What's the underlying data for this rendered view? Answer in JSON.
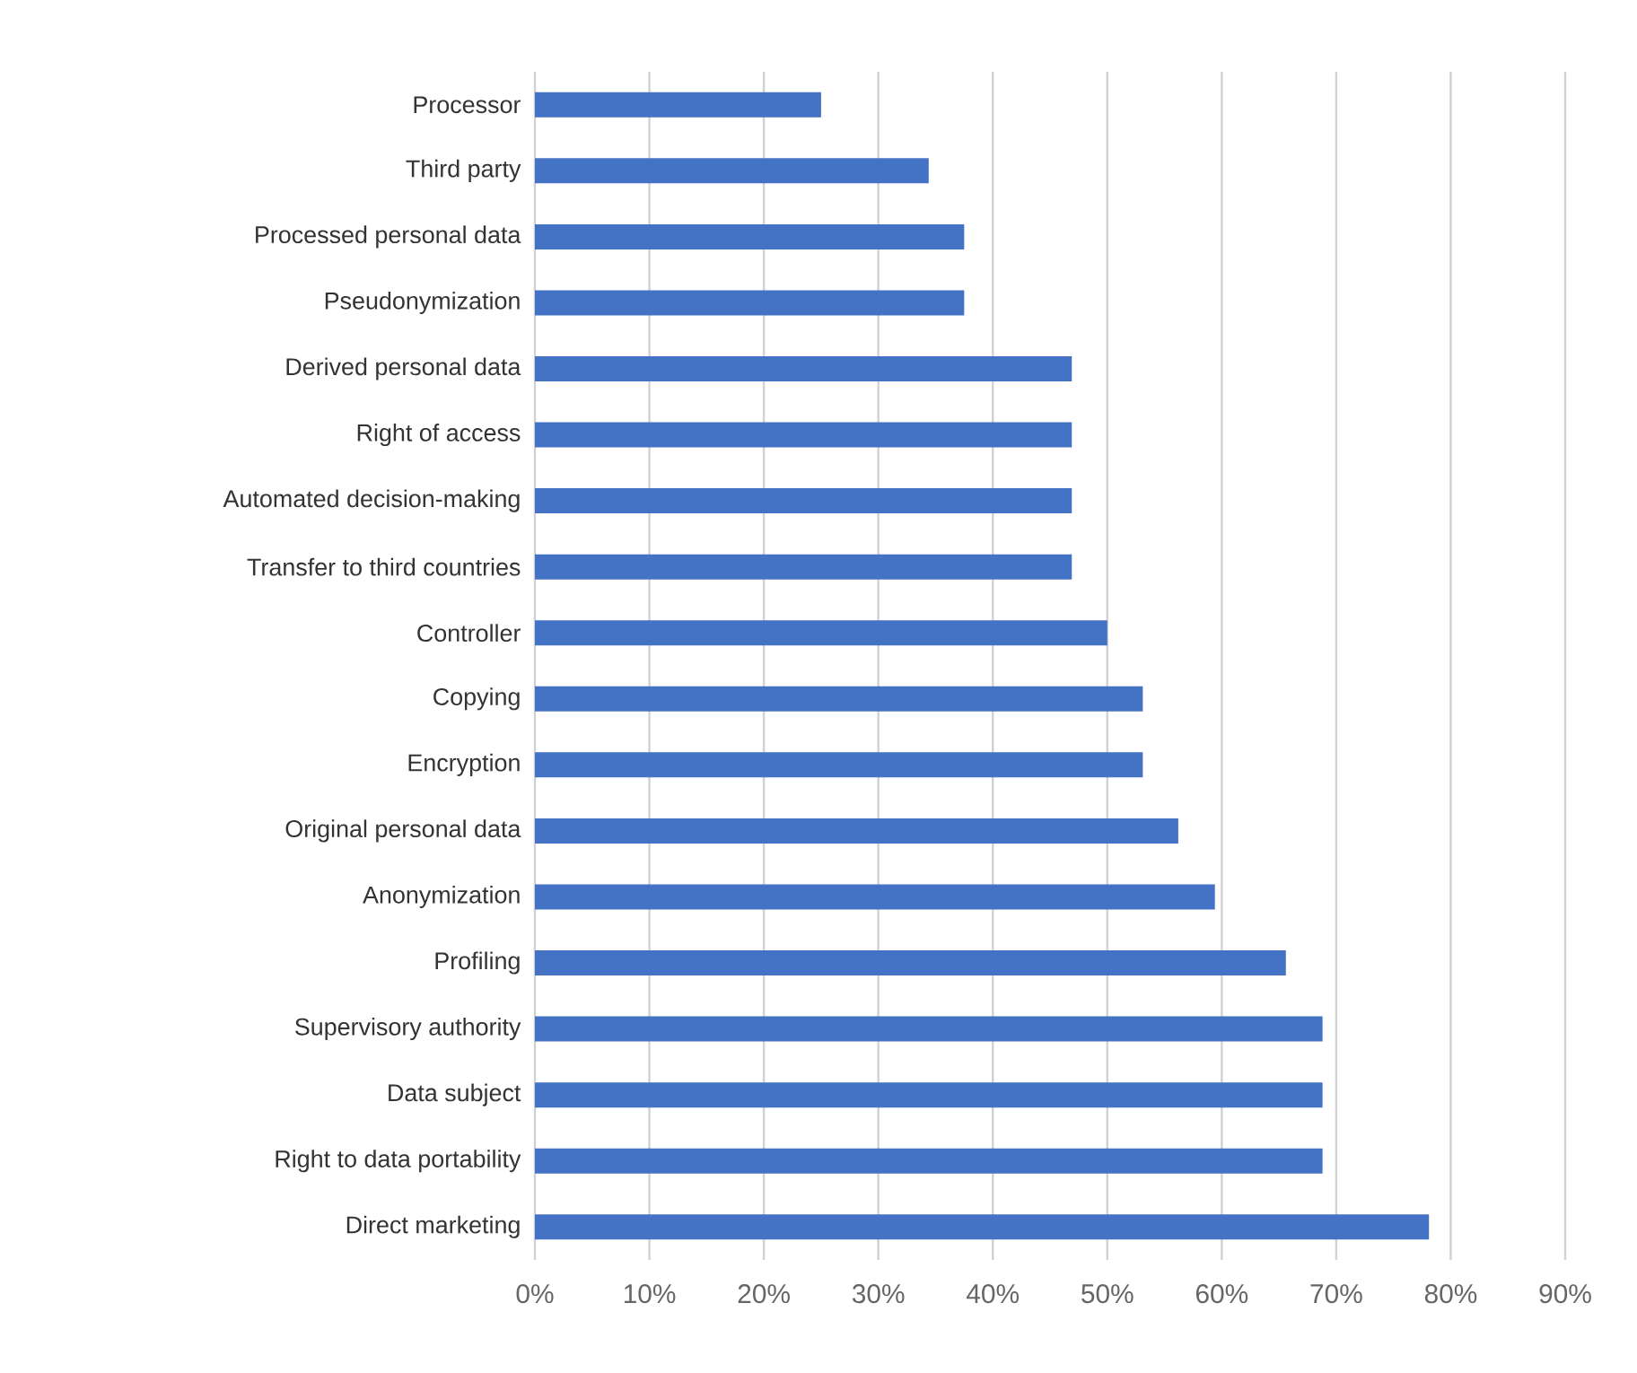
{
  "chart_data": {
    "type": "bar",
    "orientation": "horizontal",
    "categories": [
      "Processor",
      "Third party",
      "Processed personal data",
      "Pseudonymization",
      "Derived personal data",
      "Right of access",
      "Automated decision-making",
      "Transfer to third countries",
      "Controller",
      "Copying",
      "Encryption",
      "Original personal data",
      "Anonymization",
      "Profiling",
      "Supervisory authority",
      "Data subject",
      "Right to data portability",
      "Direct marketing"
    ],
    "values": [
      25,
      34.4,
      37.5,
      37.5,
      46.9,
      46.9,
      46.9,
      46.9,
      50,
      53.1,
      53.1,
      56.2,
      59.4,
      65.6,
      68.8,
      68.8,
      68.8,
      78.1
    ],
    "color": "#4472c4",
    "xlim": [
      0,
      90
    ],
    "xticks": [
      {
        "value": 0,
        "label": "0%"
      },
      {
        "value": 10,
        "label": "10%"
      },
      {
        "value": 20,
        "label": "20%"
      },
      {
        "value": 30,
        "label": "30%"
      },
      {
        "value": 40,
        "label": "40%"
      },
      {
        "value": 50,
        "label": "50%"
      },
      {
        "value": 60,
        "label": "60%"
      },
      {
        "value": 70,
        "label": "70%"
      },
      {
        "value": 80,
        "label": "80%"
      },
      {
        "value": 90,
        "label": "90%"
      }
    ],
    "grid": "x"
  }
}
